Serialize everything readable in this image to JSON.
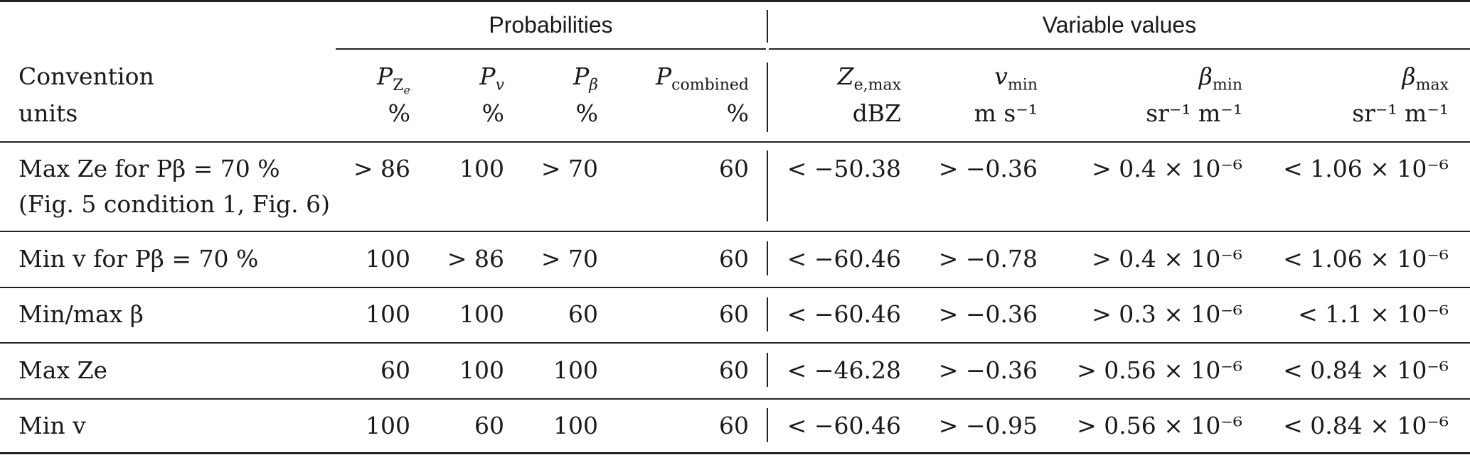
{
  "groups": {
    "probabilities": "Probabilities",
    "variables": "Variable values"
  },
  "header": {
    "row_label": [
      "Convention",
      "units"
    ],
    "columns": [
      {
        "sym": "P",
        "sub": "Z",
        "subsub": "e",
        "unit": "%"
      },
      {
        "sym": "P",
        "sub": "v",
        "unit": "%"
      },
      {
        "sym": "P",
        "sub": "β",
        "unit": "%"
      },
      {
        "sym": "P",
        "sub": "combined",
        "unit": "%"
      },
      {
        "sym": "Z",
        "sub": "e,max",
        "unit": "dBZ"
      },
      {
        "sym": "v",
        "sub": "min",
        "unit": "m s⁻¹"
      },
      {
        "sym": "β",
        "sub": "min",
        "unit": "sr⁻¹ m⁻¹"
      },
      {
        "sym": "β",
        "sub": "max",
        "unit": "sr⁻¹ m⁻¹"
      }
    ]
  },
  "rows": [
    {
      "label": "Max Ze for Pβ = 70 %",
      "label2": "(Fig. 5 condition 1, Fig. 6)",
      "cells": [
        "> 86",
        "100",
        "> 70",
        "60",
        "< −50.38",
        "> −0.36",
        "> 0.4 × 10⁻⁶",
        "< 1.06 × 10⁻⁶"
      ]
    },
    {
      "label": "Min v for Pβ = 70 %",
      "cells": [
        "100",
        "> 86",
        "> 70",
        "60",
        "< −60.46",
        "> −0.78",
        "> 0.4 × 10⁻⁶",
        "< 1.06 × 10⁻⁶"
      ]
    },
    {
      "label": "Min/max β",
      "cells": [
        "100",
        "100",
        "60",
        "60",
        "< −60.46",
        "> −0.36",
        "> 0.3 × 10⁻⁶",
        "< 1.1 × 10⁻⁶"
      ]
    },
    {
      "label": "Max Ze",
      "cells": [
        "60",
        "100",
        "100",
        "60",
        "< −46.28",
        "> −0.36",
        "> 0.56 × 10⁻⁶",
        "< 0.84 × 10⁻⁶"
      ]
    },
    {
      "label": "Min v",
      "cells": [
        "100",
        "60",
        "100",
        "60",
        "< −60.46",
        "> −0.95",
        "> 0.56 × 10⁻⁶",
        "< 0.84 × 10⁻⁶"
      ]
    }
  ]
}
